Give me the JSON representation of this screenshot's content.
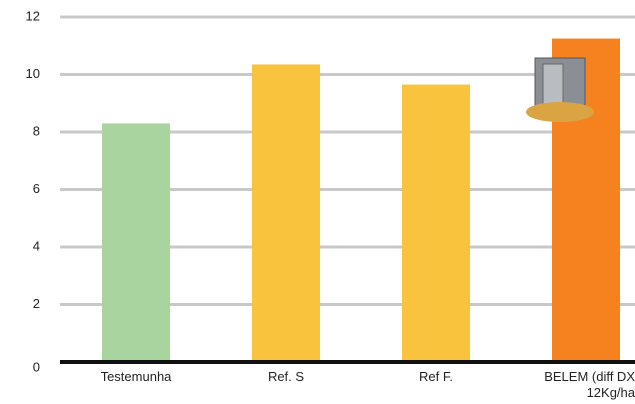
{
  "chart_data": {
    "type": "bar",
    "categories": [
      "Testemunha",
      "Ref. S",
      "Ref F.",
      "BELEM (diff DX 12Kg/ha"
    ],
    "values": [
      8.3,
      10.35,
      9.65,
      11.25
    ],
    "colors": [
      "#a9d4a0",
      "#f9c33e",
      "#f9c33e",
      "#f5821f"
    ],
    "ylim": [
      0,
      12
    ],
    "yticks": [
      0,
      2,
      4,
      6,
      8,
      10,
      12
    ],
    "grid": true
  }
}
